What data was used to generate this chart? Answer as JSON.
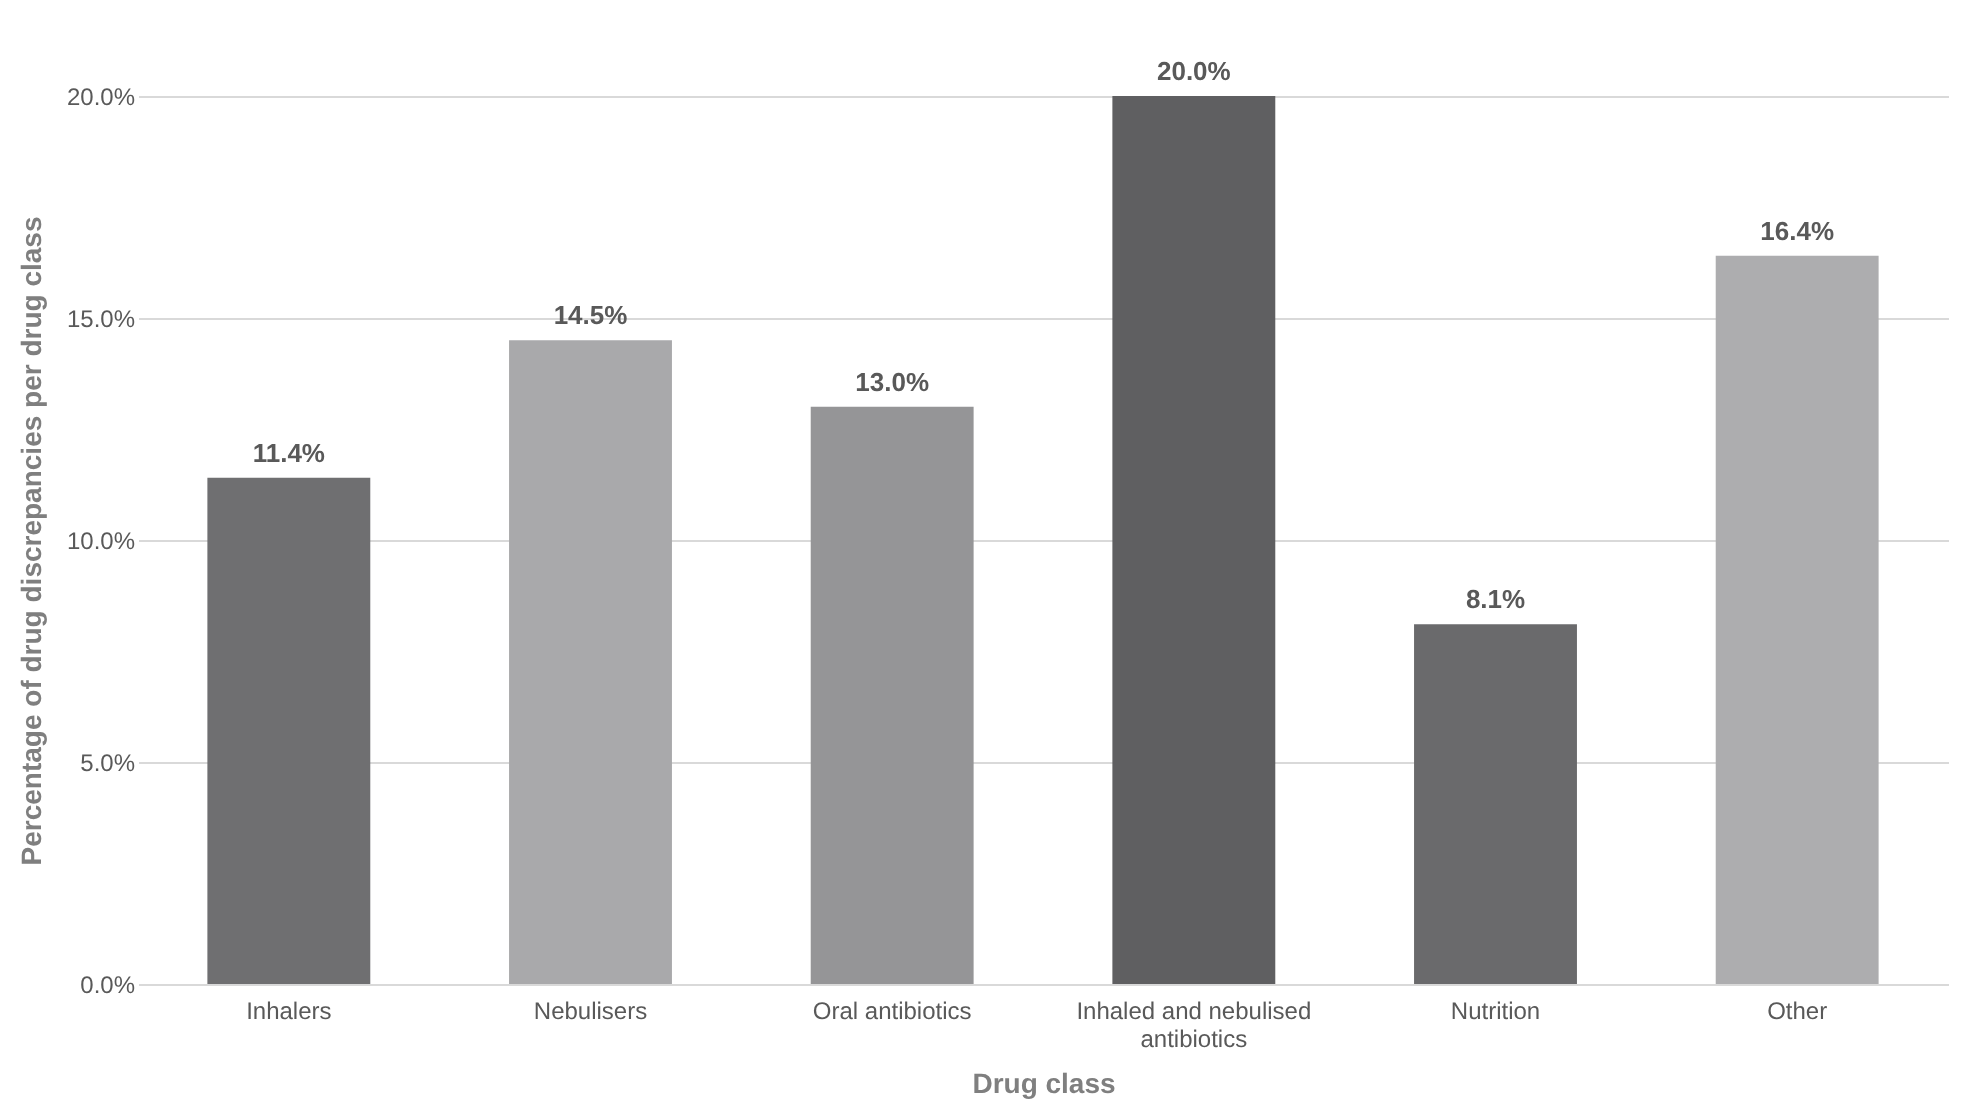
{
  "chart_data": {
    "type": "bar",
    "xlabel": "Drug class",
    "ylabel": "Percentage of drug discrepancies per drug class",
    "categories": [
      "Inhalers",
      "Nebulisers",
      "Oral antibiotics",
      "Inhaled and nebulised antibiotics",
      "Nutrition",
      "Other"
    ],
    "values": [
      11.4,
      14.5,
      13.0,
      20.0,
      8.1,
      16.4
    ],
    "colors": [
      "#6f6f71",
      "#a9a9ab",
      "#959597",
      "#5f5f61",
      "#6a6a6c",
      "#adadaf"
    ],
    "value_labels": [
      "11.4%",
      "14.5%",
      "13.0%",
      "20.0%",
      "8.1%",
      "16.4%"
    ],
    "ylim": [
      0,
      20
    ],
    "yticks": [
      {
        "value": 0,
        "label": "0.0%"
      },
      {
        "value": 5,
        "label": "5.0%"
      },
      {
        "value": 10,
        "label": "10.0%"
      },
      {
        "value": 15,
        "label": "15.0%"
      },
      {
        "value": 20,
        "label": "20.0%"
      }
    ],
    "grid": "y"
  }
}
